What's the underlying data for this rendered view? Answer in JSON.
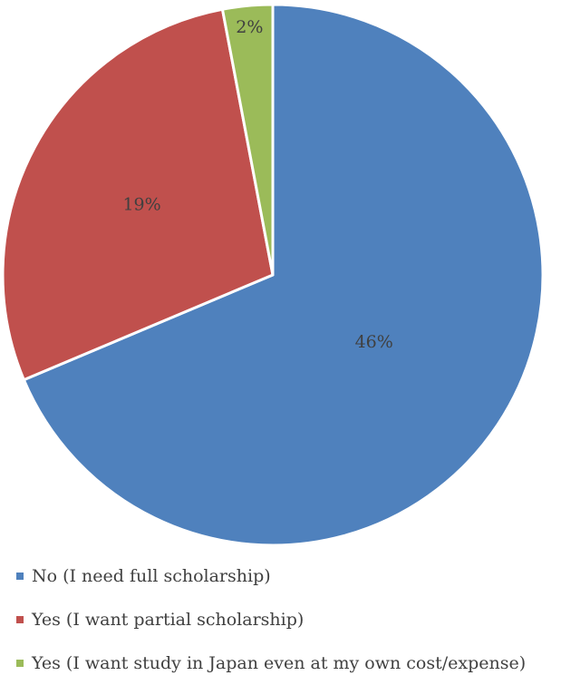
{
  "chart_data": {
    "type": "pie",
    "title": "",
    "slices": [
      {
        "name": "No (I need full scholarship)",
        "value": 46,
        "label": "46%",
        "color": "#4F81BD"
      },
      {
        "name": "Yes (I want partial scholarship)",
        "value": 19,
        "label": "19%",
        "color": "#C0504D"
      },
      {
        "name": "Yes (I want study in Japan even at my own cost/expense)",
        "value": 2,
        "label": "2%",
        "color": "#9BBB59"
      }
    ],
    "legend_position": "bottom-left",
    "label_color": "#404040"
  }
}
